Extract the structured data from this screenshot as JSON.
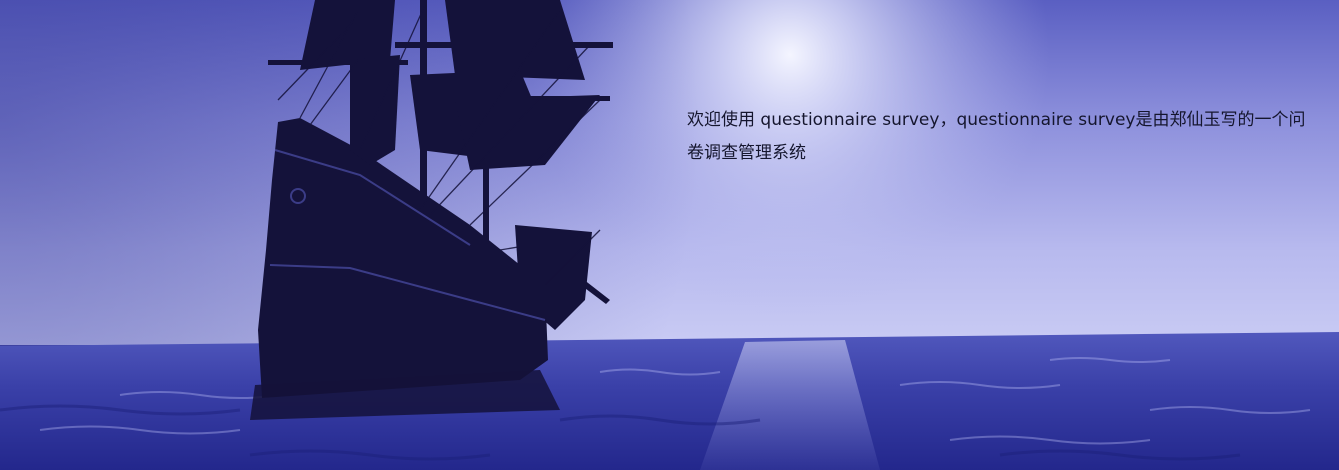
{
  "banner": {
    "image_subject": "tall-ship-at-sea",
    "welcome_text": "欢迎使用 questionnaire survey，questionnaire survey是由郑仙玉写的一个问卷调查管理系统"
  },
  "colors": {
    "sky_top": "#5d61c4",
    "sky_mid": "#a9acea",
    "horizon_glow": "#eceeff",
    "sea_near": "#2a2f9a",
    "sea_far": "#4b52b8",
    "ship_silhouette": "#14123a",
    "text": "#15162e"
  }
}
